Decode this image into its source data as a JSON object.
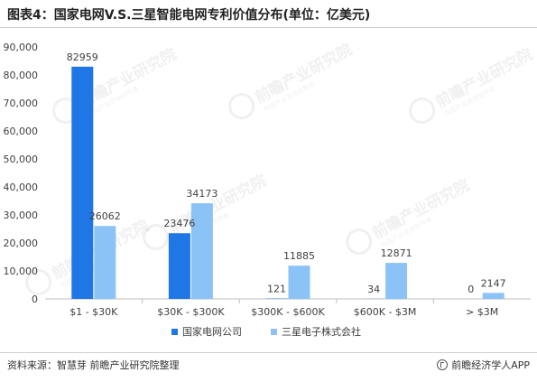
{
  "title": "图表4：国家电网V.S.三星智能电网专利价值分布(单位：亿美元)",
  "footer": {
    "source": "资料来源：智慧芽 前瞻产业研究院整理",
    "brand": "前瞻经济学人APP"
  },
  "watermark": {
    "main": "前瞻产业研究院",
    "sub": "中国产业咨询领导者"
  },
  "colors": {
    "series1": "#1f77e6",
    "series2": "#8cc3f7",
    "axis": "#bfbfbf",
    "text": "#404040"
  },
  "chart_data": {
    "type": "bar",
    "categories": [
      "$1 - $30K",
      "$30K - $300K",
      "$300K - $600K",
      "$600K - $3M",
      "> $3M"
    ],
    "series": [
      {
        "name": "国家电网公司",
        "values": [
          82959,
          23476,
          121,
          34,
          0
        ]
      },
      {
        "name": "三星电子株式会社",
        "values": [
          26062,
          34173,
          11885,
          12871,
          2147
        ]
      }
    ],
    "y_ticks": [
      "0",
      "10,000",
      "20,000",
      "30,000",
      "40,000",
      "50,000",
      "60,000",
      "70,000",
      "80,000",
      "90,000"
    ],
    "ylim": [
      0,
      90000
    ],
    "grid": false,
    "legend_position": "bottom"
  }
}
